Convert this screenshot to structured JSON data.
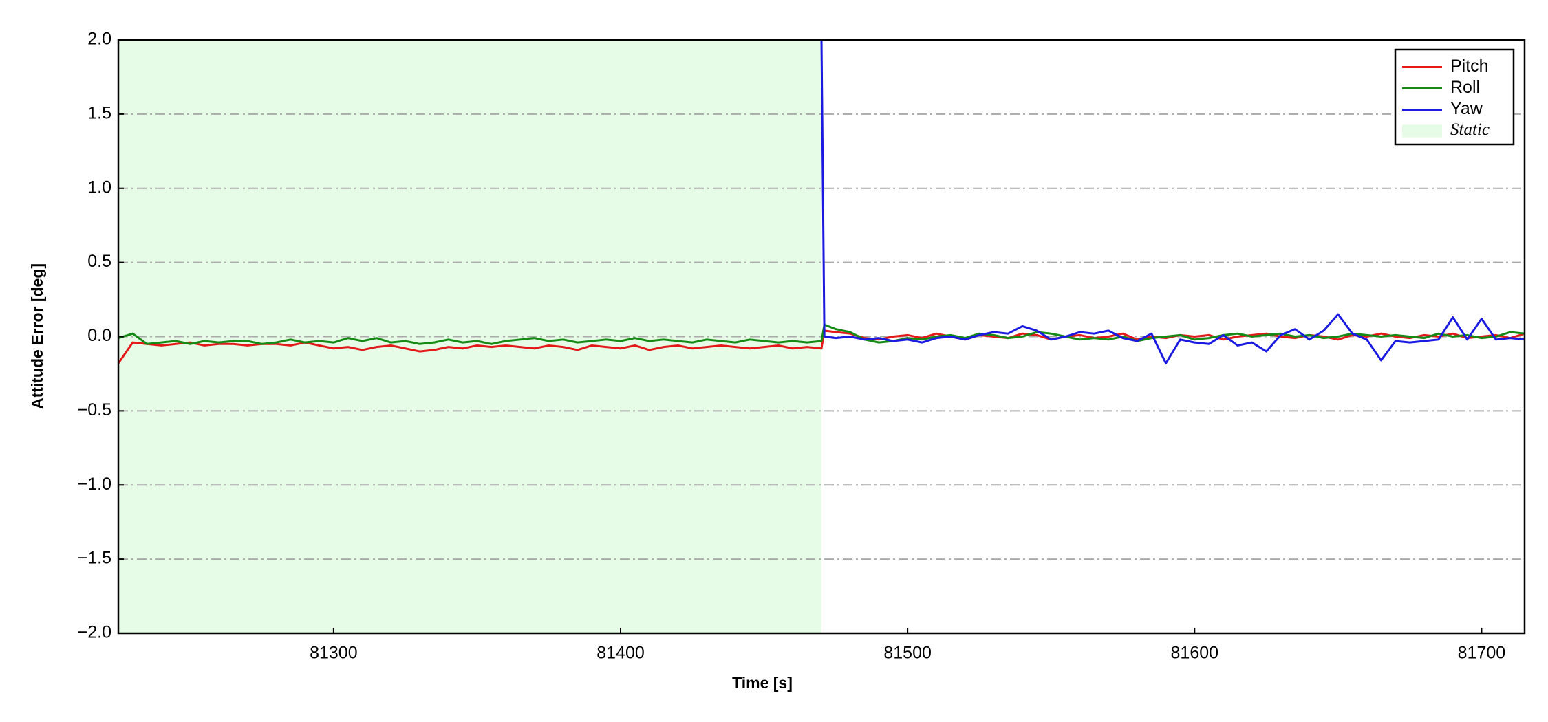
{
  "chart_data": {
    "type": "line",
    "xlabel": "Time [s]",
    "ylabel": "Attitude Error [deg]",
    "x": [
      81225,
      81230,
      81235,
      81240,
      81245,
      81250,
      81255,
      81260,
      81265,
      81270,
      81275,
      81280,
      81285,
      81290,
      81295,
      81300,
      81305,
      81310,
      81315,
      81320,
      81325,
      81330,
      81335,
      81340,
      81345,
      81350,
      81355,
      81360,
      81365,
      81370,
      81375,
      81380,
      81385,
      81390,
      81395,
      81400,
      81405,
      81410,
      81415,
      81420,
      81425,
      81430,
      81435,
      81440,
      81445,
      81450,
      81455,
      81460,
      81465,
      81470,
      81471,
      81475,
      81480,
      81485,
      81490,
      81495,
      81500,
      81505,
      81510,
      81515,
      81520,
      81525,
      81530,
      81535,
      81540,
      81545,
      81550,
      81555,
      81560,
      81565,
      81570,
      81575,
      81580,
      81585,
      81590,
      81595,
      81600,
      81605,
      81610,
      81615,
      81620,
      81625,
      81630,
      81635,
      81640,
      81645,
      81650,
      81655,
      81660,
      81665,
      81670,
      81675,
      81680,
      81685,
      81690,
      81695,
      81700,
      81705,
      81710,
      81715
    ],
    "series": [
      {
        "name": "Pitch",
        "color": "#e41a1a",
        "values": [
          -0.18,
          -0.04,
          -0.05,
          -0.06,
          -0.05,
          -0.04,
          -0.06,
          -0.05,
          -0.05,
          -0.06,
          -0.05,
          -0.05,
          -0.06,
          -0.04,
          -0.06,
          -0.08,
          -0.07,
          -0.09,
          -0.07,
          -0.06,
          -0.08,
          -0.1,
          -0.09,
          -0.07,
          -0.08,
          -0.06,
          -0.07,
          -0.06,
          -0.07,
          -0.08,
          -0.06,
          -0.07,
          -0.09,
          -0.06,
          -0.07,
          -0.08,
          -0.06,
          -0.09,
          -0.07,
          -0.06,
          -0.08,
          -0.07,
          -0.06,
          -0.07,
          -0.08,
          -0.07,
          -0.06,
          -0.08,
          -0.07,
          -0.08,
          0.04,
          0.03,
          0.02,
          -0.01,
          -0.02,
          0.0,
          0.01,
          -0.01,
          0.02,
          0.0,
          -0.02,
          0.01,
          0.0,
          -0.01,
          0.02,
          0.01,
          -0.02,
          0.0,
          0.01,
          -0.01,
          0.0,
          0.02,
          -0.02,
          0.0,
          -0.01,
          0.01,
          0.0,
          0.01,
          -0.02,
          0.0,
          0.01,
          0.02,
          0.0,
          -0.01,
          0.01,
          0.0,
          -0.02,
          0.01,
          0.0,
          0.02,
          0.0,
          -0.01,
          0.01,
          0.0,
          0.02,
          -0.01,
          0.0,
          0.01,
          -0.01,
          0.02
        ]
      },
      {
        "name": "Roll",
        "color": "#158a15",
        "values": [
          -0.01,
          0.02,
          -0.05,
          -0.04,
          -0.03,
          -0.05,
          -0.03,
          -0.04,
          -0.03,
          -0.03,
          -0.05,
          -0.04,
          -0.02,
          -0.04,
          -0.03,
          -0.04,
          -0.01,
          -0.03,
          -0.01,
          -0.04,
          -0.03,
          -0.05,
          -0.04,
          -0.02,
          -0.04,
          -0.03,
          -0.05,
          -0.03,
          -0.02,
          -0.01,
          -0.03,
          -0.02,
          -0.04,
          -0.03,
          -0.02,
          -0.03,
          -0.01,
          -0.03,
          -0.02,
          -0.03,
          -0.04,
          -0.02,
          -0.03,
          -0.04,
          -0.02,
          -0.03,
          -0.04,
          -0.03,
          -0.04,
          -0.03,
          0.08,
          0.05,
          0.03,
          -0.02,
          -0.04,
          -0.03,
          -0.01,
          -0.02,
          0.0,
          0.01,
          -0.01,
          0.02,
          0.01,
          -0.01,
          0.0,
          0.03,
          0.02,
          0.0,
          -0.02,
          -0.01,
          -0.02,
          0.0,
          -0.03,
          -0.01,
          0.0,
          0.01,
          -0.02,
          -0.01,
          0.01,
          0.02,
          0.0,
          0.01,
          0.02,
          0.0,
          0.01,
          -0.01,
          0.0,
          0.02,
          0.01,
          0.0,
          0.01,
          0.0,
          -0.01,
          0.02,
          0.0,
          0.01,
          -0.01,
          0.0,
          0.03,
          0.02
        ]
      },
      {
        "name": "Yaw",
        "color": "#1a1ae0",
        "values": [
          null,
          null,
          null,
          null,
          null,
          null,
          null,
          null,
          null,
          null,
          null,
          null,
          null,
          null,
          null,
          null,
          null,
          null,
          null,
          null,
          null,
          null,
          null,
          null,
          null,
          null,
          null,
          null,
          null,
          null,
          null,
          null,
          null,
          null,
          null,
          null,
          null,
          null,
          null,
          null,
          null,
          null,
          null,
          null,
          null,
          null,
          null,
          null,
          null,
          2.0,
          0.0,
          -0.01,
          0.0,
          -0.02,
          -0.01,
          -0.03,
          -0.02,
          -0.04,
          -0.01,
          0.0,
          -0.02,
          0.01,
          0.03,
          0.02,
          0.07,
          0.04,
          -0.02,
          0.0,
          0.03,
          0.02,
          0.04,
          -0.01,
          -0.03,
          0.02,
          -0.18,
          -0.02,
          -0.04,
          -0.05,
          0.01,
          -0.06,
          -0.04,
          -0.1,
          0.01,
          0.05,
          -0.02,
          0.04,
          0.15,
          0.02,
          -0.02,
          -0.16,
          -0.03,
          -0.04,
          -0.03,
          -0.02,
          0.13,
          -0.02,
          0.12,
          -0.02,
          -0.01,
          -0.02
        ]
      }
    ],
    "shaded_region": {
      "name": "Static",
      "color": "#e6fce6",
      "start": 81225,
      "end": 81470
    },
    "xlim": [
      81225,
      81715
    ],
    "xticks": [
      81300,
      81400,
      81500,
      81600,
      81700
    ],
    "ylim": [
      -2,
      2
    ],
    "yticks": [
      {
        "value": -2,
        "label": "−2.0"
      },
      {
        "value": -1.5,
        "label": "−1.5"
      },
      {
        "value": -1,
        "label": "−1.0"
      },
      {
        "value": -0.5,
        "label": "−0.5"
      },
      {
        "value": 0,
        "label": "0.0"
      },
      {
        "value": 0.5,
        "label": "0.5"
      },
      {
        "value": 1,
        "label": "1.0"
      },
      {
        "value": 1.5,
        "label": "1.5"
      },
      {
        "value": 2,
        "label": "2.0"
      }
    ],
    "grid": true,
    "legend": "upper right"
  }
}
